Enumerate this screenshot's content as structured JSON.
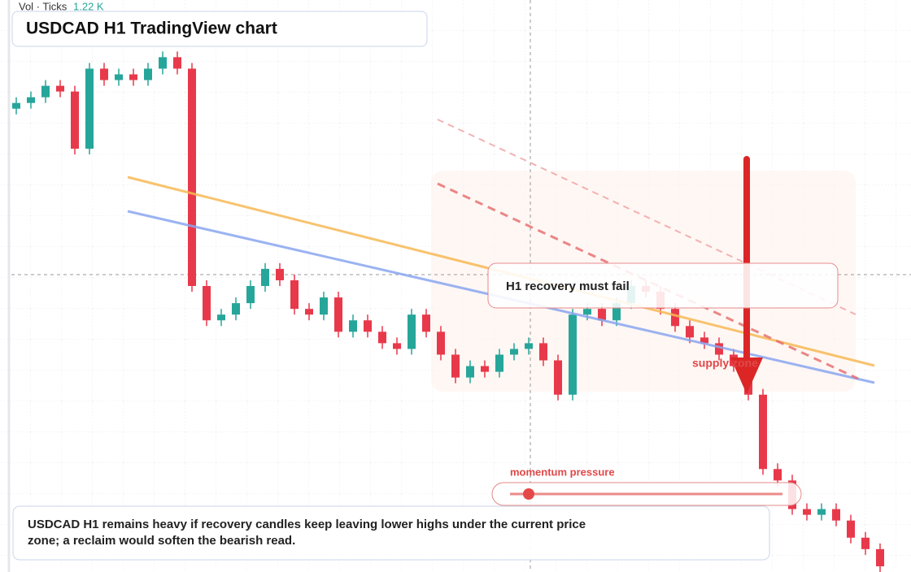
{
  "chart_data": {
    "type": "candlestick",
    "title": "USDCAD H1 TradingView chart",
    "volume_label": "Vol · Ticks",
    "volume_value": "1.22 K",
    "annotations": {
      "callout": "H1 recovery must fail",
      "zone": "supply zone",
      "momentum": "momentum pressure",
      "note": "USDCAD H1 remains heavy if recovery candles keep leaving lower highs under the current price zone; a reclaim would soften the bearish read."
    },
    "up_color": "#26a69a",
    "down_color": "#e8394b",
    "ylim": [
      0,
      100
    ],
    "open": [
      81,
      82,
      83,
      85,
      84,
      74,
      88,
      86,
      87,
      86,
      88,
      90,
      88,
      50,
      44,
      45,
      47,
      50,
      53,
      51,
      46,
      45,
      48,
      42,
      44,
      42,
      40,
      39,
      45,
      42,
      38,
      34,
      36,
      35,
      38,
      39,
      40,
      37,
      31,
      45,
      46,
      44,
      47,
      50,
      49,
      46,
      43,
      41,
      40,
      38,
      36,
      31,
      18,
      16,
      11,
      10,
      11,
      9,
      6,
      4
    ],
    "high": [
      83,
      84,
      86,
      86,
      85,
      89,
      89,
      88,
      88,
      89,
      91,
      91,
      89,
      51,
      46,
      48,
      51,
      54,
      54,
      52,
      47,
      49,
      49,
      45,
      45,
      43,
      41,
      46,
      46,
      43,
      39,
      37,
      37,
      39,
      40,
      41,
      41,
      38,
      46,
      47,
      47,
      48,
      51,
      51,
      50,
      47,
      44,
      42,
      41,
      39,
      37,
      32,
      19,
      17,
      12,
      12,
      12,
      10,
      7,
      5
    ],
    "low": [
      80,
      81,
      82,
      83,
      73,
      73,
      85,
      85,
      85,
      85,
      87,
      87,
      49,
      43,
      43,
      44,
      46,
      49,
      50,
      45,
      44,
      44,
      41,
      41,
      41,
      39,
      38,
      38,
      41,
      37,
      33,
      33,
      34,
      34,
      37,
      38,
      36,
      30,
      30,
      44,
      43,
      43,
      46,
      48,
      45,
      42,
      40,
      39,
      37,
      35,
      30,
      17,
      15,
      10,
      9,
      9,
      8,
      5,
      3,
      0
    ],
    "close": [
      82,
      83,
      85,
      84,
      74,
      88,
      86,
      87,
      86,
      88,
      90,
      88,
      50,
      44,
      45,
      47,
      50,
      53,
      51,
      46,
      45,
      48,
      42,
      44,
      42,
      40,
      39,
      45,
      42,
      38,
      34,
      36,
      35,
      38,
      39,
      40,
      37,
      31,
      45,
      46,
      44,
      47,
      50,
      49,
      46,
      43,
      41,
      40,
      38,
      36,
      31,
      18,
      16,
      11,
      10,
      11,
      9,
      6,
      4,
      1
    ]
  }
}
